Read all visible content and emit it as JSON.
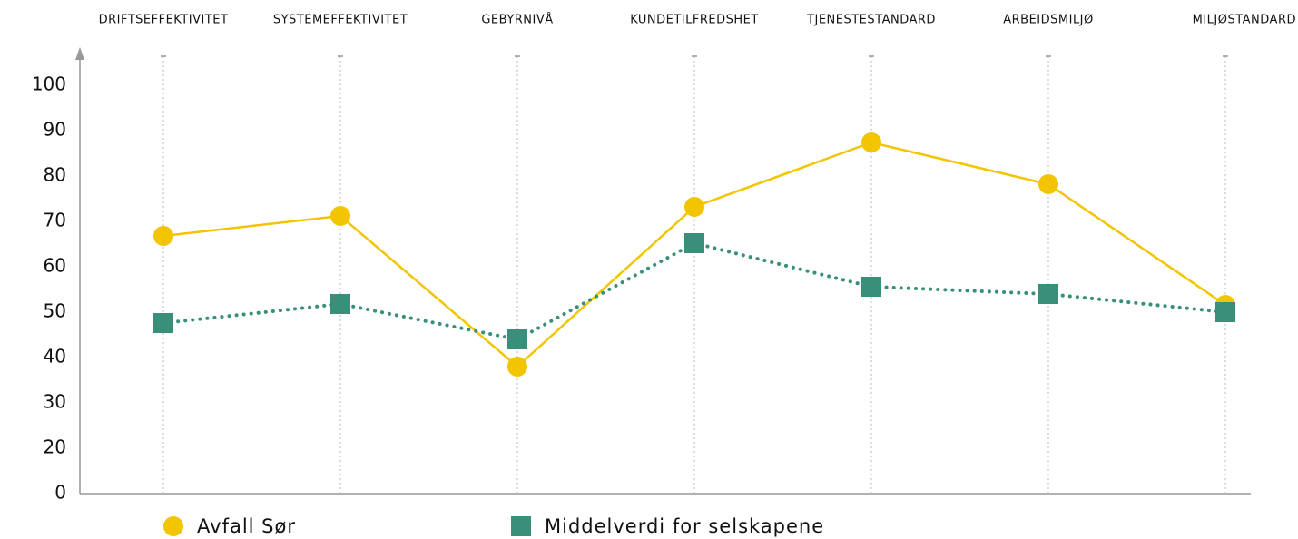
{
  "chart_data": {
    "type": "line",
    "categories": [
      "DRIFTSEFFEKTIVITET",
      "SYSTEMEFFEKTIVITET",
      "GEBYRNIVÅ",
      "KUNDETILFREDSHET",
      "TJENESTESTANDARD",
      "ARBEIDSMILJØ",
      "MILJØSTANDARD"
    ],
    "series": [
      {
        "name": "Avfall Sør",
        "color": "#f2c500",
        "marker": "circle",
        "values": [
          66.8,
          71.2,
          38,
          73.2,
          87.4,
          78.2,
          51.6
        ]
      },
      {
        "name": "Middelverdi for selskapene",
        "color": "#3a8f7a",
        "marker": "square",
        "dotted": true,
        "values": [
          47.6,
          51.8,
          44,
          65.2,
          55.6,
          54,
          50
        ]
      }
    ],
    "ylim": [
      10,
      110
    ],
    "yticks": [
      {
        "value": 10,
        "label": "0"
      },
      20,
      30,
      40,
      50,
      60,
      70,
      80,
      90,
      100
    ],
    "grid": true
  }
}
